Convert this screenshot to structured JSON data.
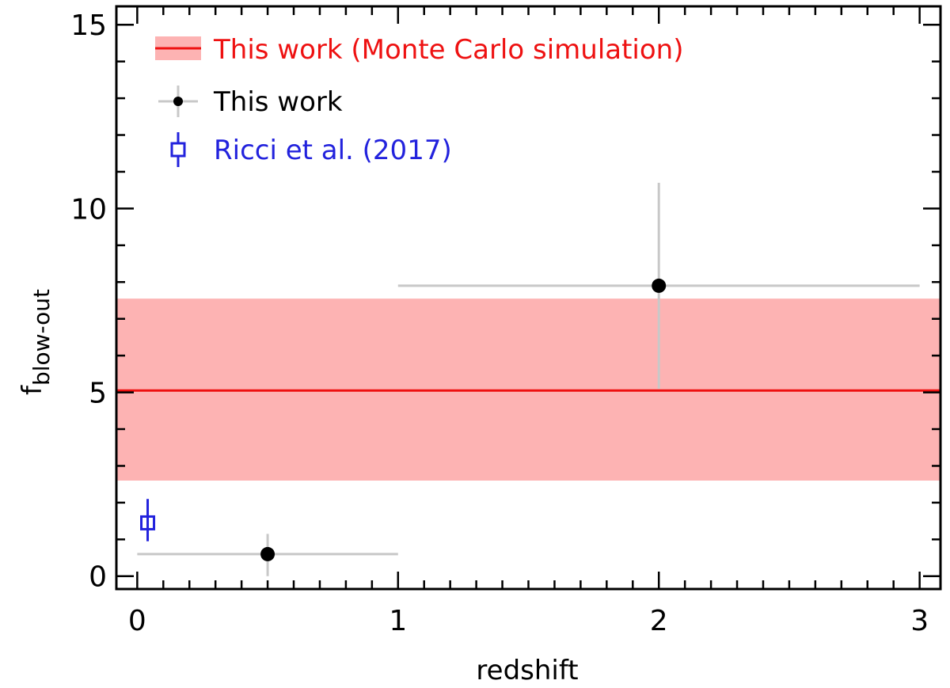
{
  "chart_data": {
    "type": "scatter",
    "title": "",
    "xlabel": "redshift",
    "ylabel": {
      "main": "f",
      "subscript": "blow-out"
    },
    "xlim": [
      -0.08,
      3.08
    ],
    "ylim": [
      -0.35,
      15.5
    ],
    "x_ticks": [
      {
        "value": 0,
        "label": "0"
      },
      {
        "value": 1,
        "label": "1"
      },
      {
        "value": 2,
        "label": "2"
      },
      {
        "value": 3,
        "label": "3"
      }
    ],
    "y_ticks": [
      {
        "value": 0,
        "label": "0"
      },
      {
        "value": 5,
        "label": "5"
      },
      {
        "value": 10,
        "label": "10"
      },
      {
        "value": 15,
        "label": "15"
      }
    ],
    "x_minor_step": 0.1,
    "y_minor_step": 1,
    "grid": false,
    "legend_position": "top-left",
    "band": {
      "name": "This work (Monte Carlo simulation)",
      "center": 5.05,
      "lower": 2.6,
      "upper": 7.55,
      "line_color": "#ee1111",
      "fill_color": "#fdb3b3"
    },
    "series": [
      {
        "name": "This work",
        "marker": "filled-circle",
        "color": "#000000",
        "errorbar_color": "#c8c8c8",
        "points": [
          {
            "x": 0.5,
            "y": 0.6,
            "xerr_low": 0.5,
            "xerr_high": 0.5,
            "yerr_low": 0.6,
            "yerr_high": 0.55
          },
          {
            "x": 2.0,
            "y": 7.9,
            "xerr_low": 1.0,
            "xerr_high": 1.0,
            "yerr_low": 2.8,
            "yerr_high": 2.8
          }
        ]
      },
      {
        "name": "Ricci et al. (2017)",
        "marker": "open-square",
        "color": "#2222dd",
        "points": [
          {
            "x": 0.04,
            "y": 1.45,
            "yerr_low": 0.5,
            "yerr_high": 0.65
          }
        ]
      }
    ],
    "legend": [
      {
        "label": "This work (Monte Carlo simulation)",
        "color": "#ee1111",
        "symbol": "band"
      },
      {
        "label": "This work",
        "color": "#000000",
        "symbol": "point-errorbar"
      },
      {
        "label": "Ricci et al. (2017)",
        "color": "#2222dd",
        "symbol": "open-square"
      }
    ]
  }
}
